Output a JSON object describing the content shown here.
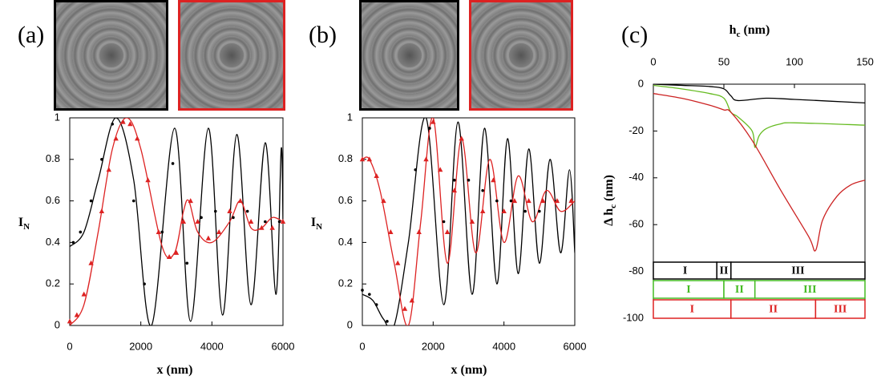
{
  "chart_data": [
    {
      "type": "line",
      "panel_label": "(a)",
      "x_label": "x (nm)",
      "y_label": "I",
      "y_label_sub": "N",
      "xlim": [
        0,
        6000
      ],
      "xticks": [
        0,
        2000,
        4000,
        6000
      ],
      "ylim": [
        0,
        1
      ],
      "yticks": [
        0,
        0.2,
        0.4,
        0.6,
        0.8,
        1
      ],
      "series": [
        {
          "color": "#000000",
          "style": "line",
          "x": [
            0,
            400,
            800,
            1300,
            1800,
            2300,
            2950,
            3400,
            3900,
            4300,
            4700,
            5100,
            5500,
            5800,
            5950,
            6000
          ],
          "values": [
            0.38,
            0.45,
            0.7,
            1.0,
            0.7,
            0.0,
            0.95,
            0.02,
            0.95,
            0.05,
            0.92,
            0.1,
            0.88,
            0.15,
            0.85,
            0.5
          ]
        },
        {
          "color": "#dd2222",
          "style": "line",
          "x": [
            0,
            400,
            800,
            1200,
            1600,
            2000,
            2600,
            2950,
            3200,
            3350,
            3600,
            4000,
            4500,
            4800,
            5100,
            5400,
            5700,
            6000
          ],
          "values": [
            0,
            0.1,
            0.45,
            0.85,
            1.0,
            0.85,
            0.38,
            0.35,
            0.55,
            0.6,
            0.45,
            0.4,
            0.5,
            0.6,
            0.47,
            0.47,
            0.52,
            0.5
          ]
        },
        {
          "color": "#000000",
          "style": "points",
          "marker": "circle",
          "x": [
            100,
            300,
            600,
            900,
            1200,
            1500,
            1800,
            2100,
            2600,
            2900,
            3300,
            3700,
            4100,
            4600,
            5000,
            5500,
            5900
          ],
          "values": [
            0.4,
            0.45,
            0.6,
            0.8,
            0.97,
            0.98,
            0.6,
            0.2,
            0.45,
            0.78,
            0.3,
            0.52,
            0.55,
            0.52,
            0.55,
            0.5,
            0.5
          ]
        },
        {
          "color": "#dd2222",
          "style": "points",
          "marker": "triangle",
          "x": [
            0,
            200,
            400,
            600,
            900,
            1100,
            1300,
            1500,
            1700,
            1900,
            2200,
            2500,
            2800,
            3000,
            3200,
            3400,
            3600,
            3900,
            4200,
            4500,
            4800,
            5100,
            5400,
            5700,
            6000
          ],
          "values": [
            0.02,
            0.05,
            0.15,
            0.3,
            0.55,
            0.75,
            0.9,
            0.98,
            0.97,
            0.9,
            0.7,
            0.45,
            0.33,
            0.35,
            0.5,
            0.6,
            0.5,
            0.42,
            0.45,
            0.55,
            0.6,
            0.5,
            0.47,
            0.47,
            0.5
          ]
        }
      ]
    },
    {
      "type": "line",
      "panel_label": "(b)",
      "x_label": "x (nm)",
      "y_label": "I",
      "y_label_sub": "N",
      "xlim": [
        0,
        6000
      ],
      "xticks": [
        0,
        2000,
        4000,
        6000
      ],
      "ylim": [
        0,
        1
      ],
      "yticks": [
        0,
        0.2,
        0.4,
        0.6,
        0.8,
        1
      ],
      "series": [
        {
          "color": "#000000",
          "style": "line",
          "x": [
            0,
            300,
            600,
            900,
            1300,
            1800,
            2300,
            2700,
            3100,
            3450,
            3800,
            4100,
            4400,
            4700,
            5000,
            5300,
            5600,
            5850,
            6000
          ],
          "values": [
            0.15,
            0.12,
            0.03,
            0.0,
            0.4,
            1.0,
            0.1,
            0.98,
            0.15,
            0.95,
            0.2,
            0.9,
            0.25,
            0.85,
            0.3,
            0.8,
            0.35,
            0.75,
            0.35
          ]
        },
        {
          "color": "#dd2222",
          "style": "line",
          "x": [
            0,
            200,
            500,
            900,
            1300,
            1650,
            2000,
            2400,
            2800,
            3200,
            3600,
            4000,
            4400,
            4800,
            5200,
            5600,
            6000
          ],
          "values": [
            0.8,
            0.8,
            0.65,
            0.3,
            0.0,
            0.5,
            1.0,
            0.3,
            0.9,
            0.35,
            0.8,
            0.4,
            0.72,
            0.5,
            0.65,
            0.55,
            0.6
          ]
        },
        {
          "color": "#000000",
          "style": "points",
          "marker": "circle",
          "x": [
            0,
            200,
            400,
            700,
            1500,
            1900,
            2300,
            2600,
            3000,
            3400,
            3800,
            4200,
            4600,
            5000,
            5500,
            5900
          ],
          "values": [
            0.17,
            0.15,
            0.1,
            0.02,
            0.75,
            0.95,
            0.5,
            0.7,
            0.7,
            0.65,
            0.6,
            0.6,
            0.55,
            0.55,
            0.6,
            0.6
          ]
        },
        {
          "color": "#dd2222",
          "style": "points",
          "marker": "triangle",
          "x": [
            0,
            200,
            400,
            600,
            800,
            1000,
            1200,
            1400,
            1600,
            1800,
            2000,
            2200,
            2400,
            2600,
            2800,
            3100,
            3400,
            3700,
            4000,
            4300,
            4700,
            5100,
            5500,
            5900
          ],
          "values": [
            0.8,
            0.8,
            0.72,
            0.6,
            0.45,
            0.3,
            0.08,
            0.12,
            0.45,
            0.8,
            0.98,
            0.75,
            0.45,
            0.65,
            0.9,
            0.5,
            0.55,
            0.7,
            0.55,
            0.6,
            0.6,
            0.6,
            0.6,
            0.6
          ]
        }
      ]
    },
    {
      "type": "line",
      "panel_label": "(c)",
      "x_label": "h",
      "x_label_sub": "c",
      "x_label_tail": " (nm)",
      "y_label": "Δ h",
      "y_label_sub": "c",
      "y_label_tail": " (nm)",
      "x_axis_position": "top",
      "xlim": [
        0,
        150
      ],
      "xticks": [
        0,
        50,
        100,
        150
      ],
      "ylim": [
        -100,
        0
      ],
      "yticks": [
        0,
        -20,
        -40,
        -60,
        -80,
        -100
      ],
      "series": [
        {
          "color": "#000000",
          "style": "line",
          "x": [
            0,
            20,
            40,
            50,
            55,
            60,
            80,
            100,
            150
          ],
          "values": [
            0,
            -0.5,
            -1,
            -2,
            -5,
            -7,
            -6,
            -6.5,
            -8
          ]
        },
        {
          "color": "#66bb22",
          "style": "line",
          "x": [
            0,
            20,
            40,
            50,
            55,
            60,
            70,
            72,
            75,
            80,
            90,
            100,
            150
          ],
          "values": [
            -0.5,
            -2,
            -4,
            -6,
            -12,
            -14,
            -20,
            -27,
            -22,
            -19,
            -17,
            -16.5,
            -17.5
          ]
        },
        {
          "color": "#cc2222",
          "style": "line",
          "x": [
            0,
            20,
            40,
            50,
            55,
            70,
            90,
            110,
            115,
            120,
            130,
            140,
            150
          ],
          "values": [
            -4,
            -6,
            -9,
            -11,
            -12,
            -24,
            -45,
            -65,
            -71,
            -58,
            -48,
            -43,
            -41
          ]
        }
      ],
      "regions": [
        {
          "color": "#000000",
          "segments": [
            {
              "label": "I",
              "start": 0,
              "end": 45
            },
            {
              "label": "II",
              "start": 45,
              "end": 55
            },
            {
              "label": "III",
              "start": 55,
              "end": 150
            }
          ]
        },
        {
          "color": "#44bb22",
          "segments": [
            {
              "label": "I",
              "start": 0,
              "end": 50
            },
            {
              "label": "II",
              "start": 50,
              "end": 72
            },
            {
              "label": "III",
              "start": 72,
              "end": 150
            }
          ]
        },
        {
          "color": "#dd2222",
          "segments": [
            {
              "label": "I",
              "start": 0,
              "end": 55
            },
            {
              "label": "II",
              "start": 55,
              "end": 115
            },
            {
              "label": "III",
              "start": 115,
              "end": 150
            }
          ]
        }
      ]
    }
  ]
}
